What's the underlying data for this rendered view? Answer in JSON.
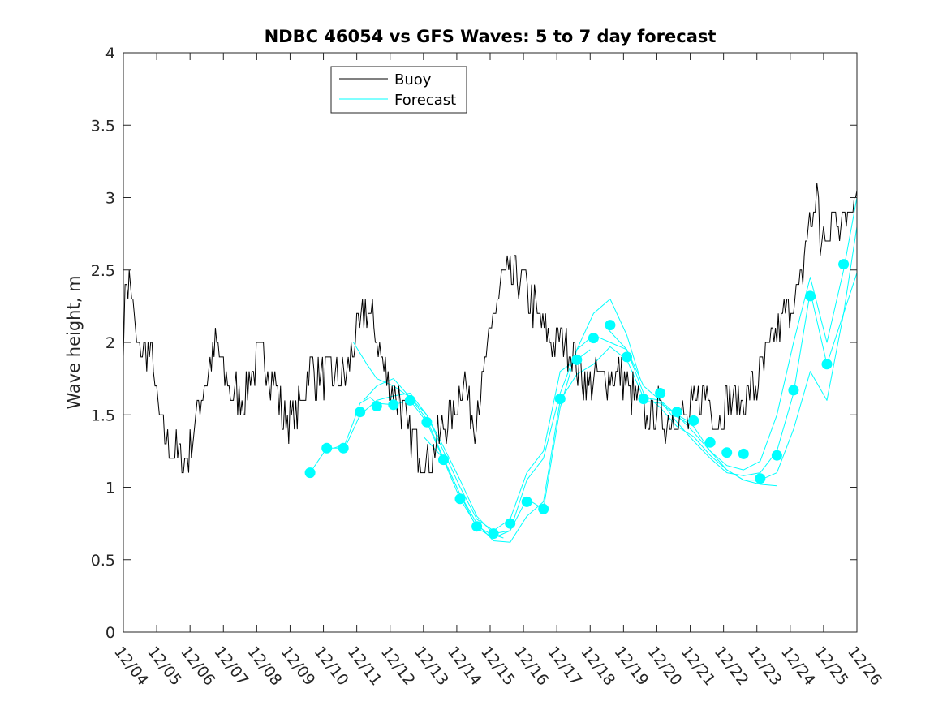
{
  "chart_data": {
    "type": "line",
    "title": "NDBC 46054 vs GFS Waves: 5 to 7 day forecast",
    "xlabel": "",
    "ylabel": "Wave height, m",
    "x_unit": "days since 12/04",
    "xlim": [
      0,
      22
    ],
    "ylim": [
      0,
      4
    ],
    "yticks": [
      0,
      0.5,
      1,
      1.5,
      2,
      2.5,
      3,
      3.5,
      4
    ],
    "ytick_labels": [
      "0",
      "0.5",
      "1",
      "1.5",
      "2",
      "2.5",
      "3",
      "3.5",
      "4"
    ],
    "xticks": [
      0,
      1,
      2,
      3,
      4,
      5,
      6,
      7,
      8,
      9,
      10,
      11,
      12,
      13,
      14,
      15,
      16,
      17,
      18,
      19,
      20,
      21,
      22
    ],
    "xtick_labels": [
      "12/04",
      "12/05",
      "12/06",
      "12/07",
      "12/08",
      "12/09",
      "12/10",
      "12/11",
      "12/12",
      "12/13",
      "12/14",
      "12/15",
      "12/16",
      "12/17",
      "12/18",
      "12/19",
      "12/20",
      "12/21",
      "12/22",
      "12/23",
      "12/24",
      "12/25",
      "12/26"
    ],
    "grid": false,
    "legend_position": "top-left",
    "colors": {
      "buoy": "#000000",
      "forecast": "#00ffff",
      "axes": "#262626"
    },
    "legend": [
      {
        "label": "Buoy",
        "series": "buoy"
      },
      {
        "label": "Forecast",
        "series": "forecast"
      }
    ],
    "buoy": {
      "name": "Buoy",
      "x": [
        0,
        0.1,
        0.25,
        0.4,
        0.7,
        0.9,
        1.0,
        1.2,
        1.5,
        1.8,
        2.0,
        2.3,
        2.6,
        2.8,
        3.0,
        3.3,
        3.6,
        3.9,
        4.2,
        4.5,
        4.8,
        5.0,
        5.3,
        5.6,
        5.8,
        6.1,
        6.4,
        6.7,
        7.0,
        7.3,
        7.6,
        7.9,
        8.1,
        8.3,
        8.5,
        8.8,
        9.0,
        9.3,
        9.6,
        9.9,
        10.2,
        10.5,
        10.8,
        11.0,
        11.3,
        11.6,
        11.9,
        12.2,
        12.5,
        12.7,
        12.9,
        13.2,
        13.5,
        13.8,
        14.0,
        14.3,
        14.6,
        14.9,
        15.2,
        15.4,
        15.7,
        16.0,
        16.3,
        16.6,
        16.9,
        17.2,
        17.5,
        17.8,
        18.1,
        18.4,
        18.7,
        19.0,
        19.3,
        19.6,
        19.9,
        20.1,
        20.3,
        20.5,
        20.7,
        20.8,
        20.9,
        21.0,
        21.1,
        21.2,
        21.4,
        21.6,
        21.8,
        22.0
      ],
      "y": [
        2.05,
        2.45,
        2.35,
        1.95,
        1.95,
        1.9,
        1.55,
        1.35,
        1.25,
        1.2,
        1.25,
        1.6,
        1.85,
        2.0,
        1.8,
        1.65,
        1.65,
        1.8,
        1.9,
        1.75,
        1.45,
        1.5,
        1.55,
        1.85,
        1.75,
        1.8,
        1.75,
        1.8,
        2.05,
        2.25,
        2.05,
        1.75,
        1.65,
        1.6,
        1.4,
        1.3,
        1.2,
        1.22,
        1.45,
        1.5,
        1.8,
        1.45,
        1.75,
        2.05,
        2.4,
        2.45,
        2.45,
        2.3,
        2.15,
        2.05,
        1.95,
        2.05,
        1.9,
        1.75,
        1.7,
        1.75,
        1.8,
        1.75,
        1.65,
        1.6,
        1.45,
        1.55,
        1.45,
        1.5,
        1.45,
        1.6,
        1.65,
        1.45,
        1.6,
        1.6,
        1.6,
        1.7,
        1.9,
        2.1,
        2.2,
        2.3,
        2.35,
        2.75,
        2.9,
        3.05,
        2.7,
        2.75,
        2.6,
        2.8,
        2.9,
        2.8,
        3.0,
        3.05
      ]
    },
    "forecast_markers": {
      "name": "Forecast",
      "x": [
        5.6,
        6.1,
        6.6,
        7.1,
        7.6,
        8.1,
        8.6,
        9.1,
        9.6,
        10.1,
        10.6,
        11.1,
        11.6,
        12.1,
        12.6,
        13.1,
        13.6,
        14.1,
        14.6,
        15.1,
        15.6,
        16.1,
        16.6,
        17.1,
        17.6,
        18.1,
        18.6,
        19.1,
        19.6,
        20.1,
        20.6,
        21.1,
        21.6
      ],
      "y": [
        1.1,
        1.27,
        1.27,
        1.52,
        1.56,
        1.57,
        1.6,
        1.45,
        1.19,
        0.92,
        0.73,
        0.68,
        0.75,
        0.9,
        0.85,
        1.61,
        1.88,
        2.03,
        2.12,
        1.9,
        1.61,
        1.65,
        1.52,
        1.46,
        1.31,
        1.24,
        1.23,
        1.06,
        1.22,
        1.67,
        2.32,
        1.85,
        2.54
      ]
    },
    "forecast_runs": [
      {
        "name": "Forecast",
        "x": [
          5.6,
          6.1,
          6.6,
          6.9,
          7.1,
          7.4,
          7.6,
          8.1,
          8.6,
          9.1,
          9.6,
          10.1,
          10.6,
          11.0,
          11.4
        ],
        "y": [
          1.1,
          1.27,
          1.27,
          1.45,
          1.58,
          1.62,
          1.58,
          1.57,
          1.6,
          1.45,
          1.19,
          0.92,
          0.73,
          0.68,
          0.65
        ]
      },
      {
        "name": "Forecast",
        "x": [
          6.3,
          6.7,
          7.1,
          7.6,
          8.1,
          8.6,
          9.1,
          9.6,
          10.1,
          10.6,
          11.1,
          11.6,
          12.1,
          12.6,
          13.1,
          13.6,
          14.0
        ],
        "y": [
          1.27,
          1.3,
          1.5,
          1.6,
          1.63,
          1.65,
          1.5,
          1.25,
          1.0,
          0.78,
          0.7,
          0.78,
          1.1,
          1.25,
          1.8,
          1.88,
          1.95
        ]
      },
      {
        "name": "Forecast",
        "x": [
          6.9,
          7.3,
          7.6,
          8.1,
          8.6,
          9.1,
          9.6,
          10.1,
          10.6,
          11.1,
          11.6,
          12.1,
          12.6,
          13.1,
          13.6,
          14.1,
          14.6,
          15.1,
          15.5
        ],
        "y": [
          2.0,
          1.85,
          1.75,
          1.7,
          1.62,
          1.5,
          1.28,
          1.05,
          0.8,
          0.68,
          0.7,
          0.92,
          0.85,
          1.55,
          1.95,
          2.2,
          2.3,
          2.05,
          1.75
        ]
      },
      {
        "name": "Forecast",
        "x": [
          7.2,
          7.6,
          8.1,
          8.6,
          9.1,
          9.6,
          10.1,
          10.6,
          11.1,
          11.6,
          12.1,
          12.6,
          13.1,
          13.6,
          14.1,
          14.6,
          15.1,
          15.6,
          16.1,
          16.6,
          17.0
        ],
        "y": [
          1.6,
          1.7,
          1.75,
          1.62,
          1.47,
          1.2,
          0.95,
          0.75,
          0.63,
          0.62,
          0.8,
          0.9,
          1.6,
          1.78,
          1.85,
          1.97,
          1.88,
          1.62,
          1.6,
          1.5,
          1.45
        ]
      },
      {
        "name": "Forecast",
        "x": [
          9.0,
          9.6,
          10.1,
          10.6,
          11.1,
          11.6,
          12.1,
          12.6,
          13.1,
          13.6,
          14.1,
          14.6,
          15.1,
          15.6,
          16.1,
          16.6,
          17.1,
          17.6,
          18.1,
          18.6,
          19.1,
          19.6
        ],
        "y": [
          1.35,
          1.2,
          0.95,
          0.72,
          0.65,
          0.7,
          1.05,
          1.2,
          1.65,
          1.95,
          2.05,
          2.0,
          1.95,
          1.65,
          1.55,
          1.42,
          1.35,
          1.22,
          1.12,
          1.05,
          1.02,
          1.01
        ]
      },
      {
        "name": "Forecast",
        "x": [
          14.5,
          15.1,
          15.6,
          16.1,
          16.6,
          17.1,
          17.6,
          18.1,
          18.6,
          19.1,
          19.6,
          20.1,
          20.6,
          21.1,
          21.6,
          22.0
        ],
        "y": [
          2.1,
          1.95,
          1.7,
          1.6,
          1.45,
          1.32,
          1.2,
          1.1,
          1.08,
          1.1,
          1.25,
          1.65,
          2.35,
          1.85,
          2.2,
          2.8
        ]
      },
      {
        "name": "Forecast",
        "x": [
          15.5,
          16.1,
          16.6,
          17.1,
          17.6,
          18.1,
          18.6,
          19.1,
          19.6,
          20.1,
          20.6,
          21.1,
          21.6,
          22.0
        ],
        "y": [
          1.6,
          1.58,
          1.5,
          1.38,
          1.25,
          1.15,
          1.12,
          1.18,
          1.5,
          2.0,
          2.45,
          2.0,
          2.5,
          3.0
        ]
      },
      {
        "name": "Forecast",
        "x": [
          16.5,
          17.1,
          17.6,
          18.1,
          18.6,
          19.1,
          19.6,
          20.1,
          20.6,
          21.1,
          21.6,
          22.0
        ],
        "y": [
          1.5,
          1.42,
          1.25,
          1.12,
          1.05,
          1.05,
          1.1,
          1.4,
          1.8,
          1.6,
          2.2,
          2.48
        ]
      }
    ]
  }
}
